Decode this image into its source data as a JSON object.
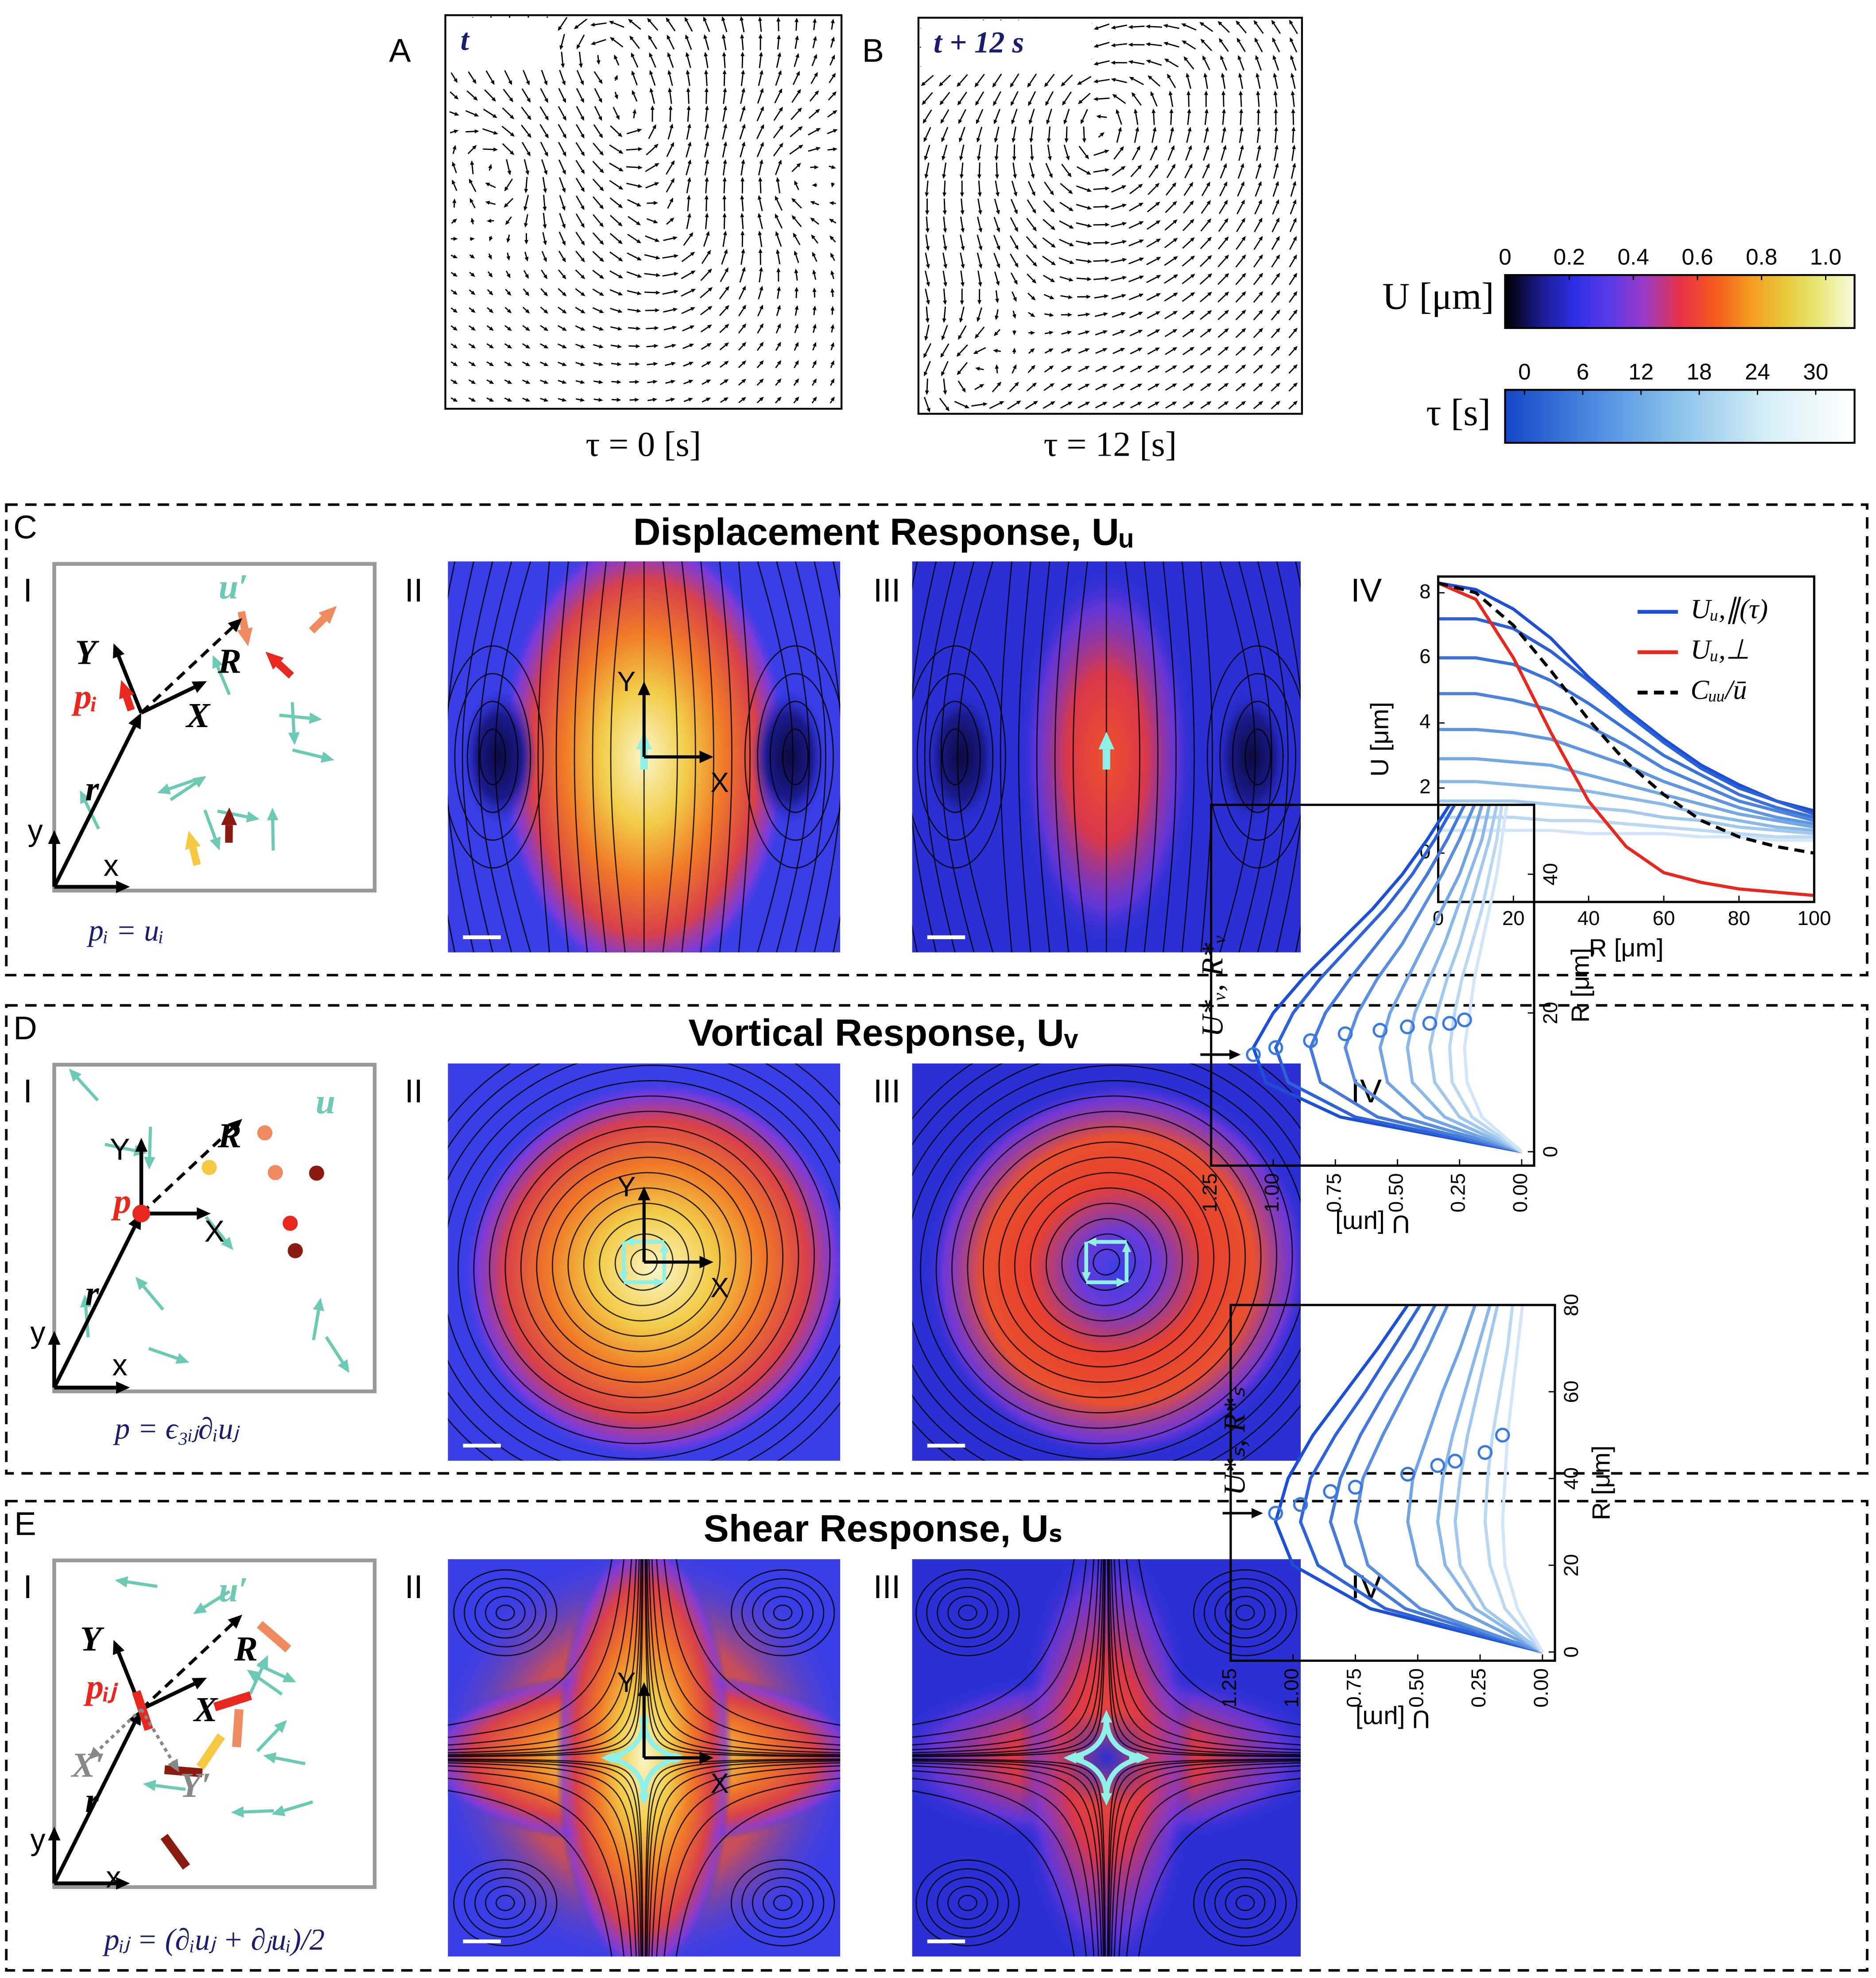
{
  "panels": {
    "A": {
      "label": "A",
      "inset": "t",
      "caption": "τ = 0 [s]"
    },
    "B": {
      "label": "B",
      "inset": "t + 12 s",
      "caption": "τ = 12 [s]"
    },
    "C": {
      "label": "C",
      "title": "Displacement Response, Uᵤ",
      "subpanels": [
        "I",
        "II",
        "III",
        "IV"
      ],
      "schematic": {
        "labels": [
          "u′",
          "R",
          "Y",
          "X",
          "pᵢ",
          "r",
          "y",
          "x"
        ],
        "equation": "pᵢ = uᵢ"
      },
      "heatmap_axes": [
        "Y",
        "X"
      ]
    },
    "D": {
      "label": "D",
      "title": "Vortical Response, Uᵥ",
      "subpanels": [
        "I",
        "II",
        "III",
        "IV"
      ],
      "schematic": {
        "labels": [
          "u",
          "R",
          "Y",
          "X",
          "p",
          "r",
          "y",
          "x"
        ],
        "equation": "p = ϵ₃ᵢⱼ∂ᵢuⱼ"
      },
      "heatmap_axes": [
        "Y",
        "X"
      ]
    },
    "E": {
      "label": "E",
      "title": "Shear Response, Uₛ",
      "subpanels": [
        "I",
        "II",
        "III",
        "IV"
      ],
      "schematic": {
        "labels": [
          "u′",
          "R",
          "Y",
          "X",
          "pᵢⱼ",
          "X′",
          "Y′",
          "r",
          "y",
          "x"
        ],
        "equation": "pᵢⱼ = (∂ᵢuⱼ + ∂ⱼuᵢ)/2"
      },
      "heatmap_axes": [
        "Y",
        "X"
      ]
    }
  },
  "colorbars": [
    {
      "label": "U [μm]",
      "lim": [
        0,
        1.09
      ],
      "ticks": [
        0,
        0.2,
        0.4,
        0.6,
        0.8,
        {
          "value": 1.0,
          "label": "1.0"
        }
      ],
      "colors": [
        "#000000",
        "#1a1a8c",
        "#2e2ee6",
        "#5a3ae6",
        "#9a3ac8",
        "#e8304a",
        "#f45a1e",
        "#f59a20",
        "#e8c83a",
        "#e8e87a",
        "#fafae0"
      ]
    },
    {
      "label": "τ [s]",
      "lim": [
        -2,
        34
      ],
      "ticks": [
        0,
        6,
        12,
        18,
        24,
        30
      ],
      "colors": [
        "#1446c8",
        "#4a8ae0",
        "#8cc4ec",
        "#d6eef6",
        "#ffffff"
      ]
    }
  ],
  "chart_data": [
    {
      "type": "line",
      "xlabel": "R [μm]",
      "ylabel": "U [μm]",
      "x": [
        0,
        10,
        20,
        30,
        40,
        50,
        60,
        70,
        80,
        90,
        100
      ],
      "xlim": [
        0,
        100
      ],
      "xticks": [
        0,
        20,
        40,
        60,
        80,
        100
      ],
      "ylim": [
        -1.5,
        8.5
      ],
      "yticks": [
        0,
        2,
        4,
        6,
        8
      ],
      "legend": "upper right",
      "series": [
        {
          "name": "Uᵤ,∥(τ)",
          "color": "#1c4fd6",
          "values": [
            8.3,
            8.1,
            7.5,
            6.6,
            5.4,
            4.4,
            3.5,
            2.7,
            2.1,
            1.6,
            1.3
          ]
        },
        {
          "color": "#2a60d8",
          "values": [
            7.2,
            7.2,
            6.9,
            6.2,
            5.3,
            4.3,
            3.4,
            2.6,
            2.0,
            1.6,
            1.2
          ]
        },
        {
          "color": "#3a72da",
          "values": [
            6.0,
            6.0,
            5.8,
            5.3,
            4.6,
            3.8,
            3.0,
            2.4,
            1.8,
            1.4,
            1.1
          ]
        },
        {
          "color": "#4c84dd",
          "values": [
            4.9,
            4.9,
            4.7,
            4.4,
            3.9,
            3.3,
            2.6,
            2.1,
            1.6,
            1.3,
            1.0
          ]
        },
        {
          "color": "#5f96e0",
          "values": [
            3.8,
            3.8,
            3.7,
            3.5,
            3.1,
            2.7,
            2.2,
            1.8,
            1.4,
            1.1,
            0.9
          ]
        },
        {
          "color": "#74a8e4",
          "values": [
            2.9,
            2.9,
            2.8,
            2.7,
            2.4,
            2.1,
            1.8,
            1.5,
            1.2,
            1.0,
            0.8
          ]
        },
        {
          "color": "#8ab9e8",
          "values": [
            2.2,
            2.2,
            2.1,
            2.0,
            1.9,
            1.7,
            1.5,
            1.2,
            1.0,
            0.8,
            0.7
          ]
        },
        {
          "color": "#a2c9ed",
          "values": [
            1.6,
            1.6,
            1.6,
            1.5,
            1.4,
            1.3,
            1.1,
            1.0,
            0.8,
            0.7,
            0.6
          ]
        },
        {
          "color": "#bad8f2",
          "values": [
            1.1,
            1.1,
            1.1,
            1.0,
            1.0,
            0.9,
            0.8,
            0.7,
            0.6,
            0.5,
            0.5
          ]
        },
        {
          "color": "#d2e6f7",
          "values": [
            0.7,
            0.7,
            0.7,
            0.7,
            0.6,
            0.6,
            0.6,
            0.5,
            0.5,
            0.4,
            0.4
          ]
        },
        {
          "name": "Uᵤ,⊥",
          "color": "#e8281e",
          "values": [
            8.3,
            7.8,
            6.0,
            3.7,
            1.6,
            0.2,
            -0.6,
            -0.9,
            -1.1,
            -1.2,
            -1.3
          ]
        },
        {
          "name": "Cᵤᵤ/ū",
          "color": "#000000",
          "linestyle": "dashed",
          "values": [
            8.3,
            8.0,
            7.0,
            5.6,
            4.1,
            2.8,
            1.8,
            1.0,
            0.5,
            0.2,
            0.0
          ]
        }
      ]
    },
    {
      "type": "line",
      "xlabel": "R [μm]",
      "ylabel": "U [μm]",
      "x": [
        0,
        5,
        10,
        15,
        20,
        25,
        30,
        35,
        40,
        45,
        50
      ],
      "xlim": [
        -2,
        50
      ],
      "xticks": [
        0,
        20,
        40
      ],
      "ylim": [
        -0.05,
        1.25
      ],
      "yticks": [
        {
          "value": 0,
          "label": "0.00"
        },
        0.25,
        {
          "value": 0.5,
          "label": "0.50"
        },
        0.75,
        {
          "value": 1,
          "label": "1.00"
        },
        1.25
      ],
      "annotation": "U*ᵥ, R*ᵥ",
      "series": [
        {
          "color": "#1c4fd6",
          "values": [
            0,
            0.73,
            1.03,
            1.08,
            1.0,
            0.88,
            0.74,
            0.6,
            0.48,
            0.38,
            0.29
          ]
        },
        {
          "color": "#2e62d8",
          "values": [
            0,
            0.67,
            0.94,
            0.99,
            0.92,
            0.81,
            0.68,
            0.55,
            0.44,
            0.35,
            0.27
          ]
        },
        {
          "color": "#4478db",
          "values": [
            0,
            0.58,
            0.81,
            0.85,
            0.79,
            0.69,
            0.58,
            0.47,
            0.38,
            0.3,
            0.23
          ]
        },
        {
          "color": "#5a8ede",
          "values": [
            0,
            0.48,
            0.67,
            0.71,
            0.66,
            0.58,
            0.48,
            0.4,
            0.32,
            0.25,
            0.19
          ]
        },
        {
          "color": "#72a4e3",
          "values": [
            0,
            0.39,
            0.54,
            0.57,
            0.53,
            0.46,
            0.39,
            0.32,
            0.25,
            0.2,
            0.16
          ]
        },
        {
          "color": "#8ab8e8",
          "values": [
            0,
            0.31,
            0.44,
            0.46,
            0.43,
            0.37,
            0.31,
            0.26,
            0.21,
            0.16,
            0.13
          ]
        },
        {
          "color": "#a2c9ed",
          "values": [
            0,
            0.25,
            0.35,
            0.37,
            0.34,
            0.3,
            0.25,
            0.21,
            0.17,
            0.13,
            0.1
          ]
        },
        {
          "color": "#bad8f2",
          "values": [
            0,
            0.2,
            0.28,
            0.29,
            0.27,
            0.24,
            0.2,
            0.16,
            0.13,
            0.1,
            0.08
          ]
        },
        {
          "color": "#d2e6f7",
          "values": [
            0,
            0.16,
            0.22,
            0.23,
            0.21,
            0.19,
            0.16,
            0.13,
            0.1,
            0.08,
            0.06
          ]
        }
      ],
      "markers": {
        "color": "#3a7ae0",
        "x": [
          14,
          15,
          16,
          17,
          17.5,
          18,
          18.5,
          18.5,
          19
        ],
        "y": [
          1.08,
          0.99,
          0.85,
          0.71,
          0.57,
          0.46,
          0.37,
          0.29,
          0.23
        ]
      }
    },
    {
      "type": "line",
      "xlabel": "R [μm]",
      "ylabel": "U [μm]",
      "x": [
        0,
        10,
        20,
        30,
        40,
        50,
        60,
        70,
        80
      ],
      "xlim": [
        -2,
        80
      ],
      "xticks": [
        0,
        20,
        40,
        60,
        80
      ],
      "ylim": [
        -0.05,
        1.25
      ],
      "yticks": [
        {
          "value": 0,
          "label": "0.00"
        },
        0.25,
        {
          "value": 0.5,
          "label": "0.50"
        },
        0.75,
        {
          "value": 1,
          "label": "1.00"
        },
        1.25
      ],
      "annotation": "U*ₛ, R*ₛ",
      "series": [
        {
          "color": "#1c4fd6",
          "values": [
            0,
            0.69,
            1.0,
            1.07,
            1.02,
            0.92,
            0.79,
            0.66,
            0.54
          ]
        },
        {
          "color": "#2e62d8",
          "values": [
            0,
            0.63,
            0.9,
            0.97,
            0.93,
            0.83,
            0.71,
            0.6,
            0.49
          ]
        },
        {
          "color": "#4478db",
          "values": [
            0,
            0.55,
            0.79,
            0.85,
            0.81,
            0.73,
            0.63,
            0.52,
            0.43
          ]
        },
        {
          "color": "#5a8ede",
          "values": [
            0,
            0.49,
            0.7,
            0.75,
            0.72,
            0.64,
            0.55,
            0.46,
            0.38
          ]
        },
        {
          "color": "#72a4e3",
          "values": [
            0,
            0.35,
            0.5,
            0.54,
            0.52,
            0.46,
            0.4,
            0.33,
            0.27
          ]
        },
        {
          "color": "#8ab8e8",
          "values": [
            0,
            0.27,
            0.39,
            0.42,
            0.4,
            0.36,
            0.31,
            0.26,
            0.21
          ]
        },
        {
          "color": "#a2c9ed",
          "values": [
            0,
            0.23,
            0.33,
            0.35,
            0.33,
            0.3,
            0.26,
            0.22,
            0.18
          ]
        },
        {
          "color": "#bad8f2",
          "values": [
            0,
            0.15,
            0.21,
            0.23,
            0.22,
            0.2,
            0.17,
            0.14,
            0.12
          ]
        },
        {
          "color": "#d2e6f7",
          "values": [
            0,
            0.1,
            0.15,
            0.16,
            0.15,
            0.14,
            0.12,
            0.1,
            0.08
          ]
        }
      ],
      "markers": {
        "color": "#3a7ae0",
        "x": [
          32,
          34,
          37,
          38,
          41,
          43,
          44,
          46,
          50
        ],
        "y": [
          1.07,
          0.97,
          0.85,
          0.75,
          0.54,
          0.42,
          0.35,
          0.23,
          0.16
        ]
      }
    }
  ]
}
